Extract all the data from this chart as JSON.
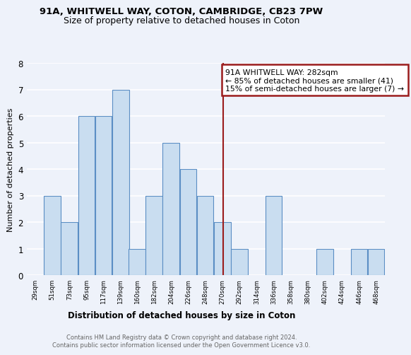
{
  "title1": "91A, WHITWELL WAY, COTON, CAMBRIDGE, CB23 7PW",
  "title2": "Size of property relative to detached houses in Coton",
  "xlabel": "Distribution of detached houses by size in Coton",
  "ylabel": "Number of detached properties",
  "footnote": "Contains HM Land Registry data © Crown copyright and database right 2024.\nContains public sector information licensed under the Open Government Licence v3.0.",
  "bin_labels": [
    "29sqm",
    "51sqm",
    "73sqm",
    "95sqm",
    "117sqm",
    "139sqm",
    "160sqm",
    "182sqm",
    "204sqm",
    "226sqm",
    "248sqm",
    "270sqm",
    "292sqm",
    "314sqm",
    "336sqm",
    "358sqm",
    "380sqm",
    "402sqm",
    "424sqm",
    "446sqm",
    "468sqm"
  ],
  "bar_heights": [
    0,
    3,
    2,
    6,
    6,
    7,
    1,
    3,
    5,
    4,
    3,
    2,
    1,
    0,
    3,
    0,
    0,
    1,
    0,
    1,
    1
  ],
  "bar_color": "#c9ddf0",
  "bar_edge_color": "#5b8ec4",
  "property_value": 282,
  "property_label": "91A WHITWELL WAY: 282sqm",
  "annotation_line1": "← 85% of detached houses are smaller (41)",
  "annotation_line2": "15% of semi-detached houses are larger (7) →",
  "vline_color": "#9b1c1c",
  "annotation_box_edge": "#9b1c1c",
  "ylim": [
    0,
    8
  ],
  "yticks": [
    0,
    1,
    2,
    3,
    4,
    5,
    6,
    7,
    8
  ],
  "background_color": "#eef2fa",
  "plot_bg_color": "#eef2fa",
  "grid_color": "#ffffff",
  "bin_edges": [
    29,
    51,
    73,
    95,
    117,
    139,
    160,
    182,
    204,
    226,
    248,
    270,
    292,
    314,
    336,
    358,
    380,
    402,
    424,
    446,
    468,
    490
  ]
}
